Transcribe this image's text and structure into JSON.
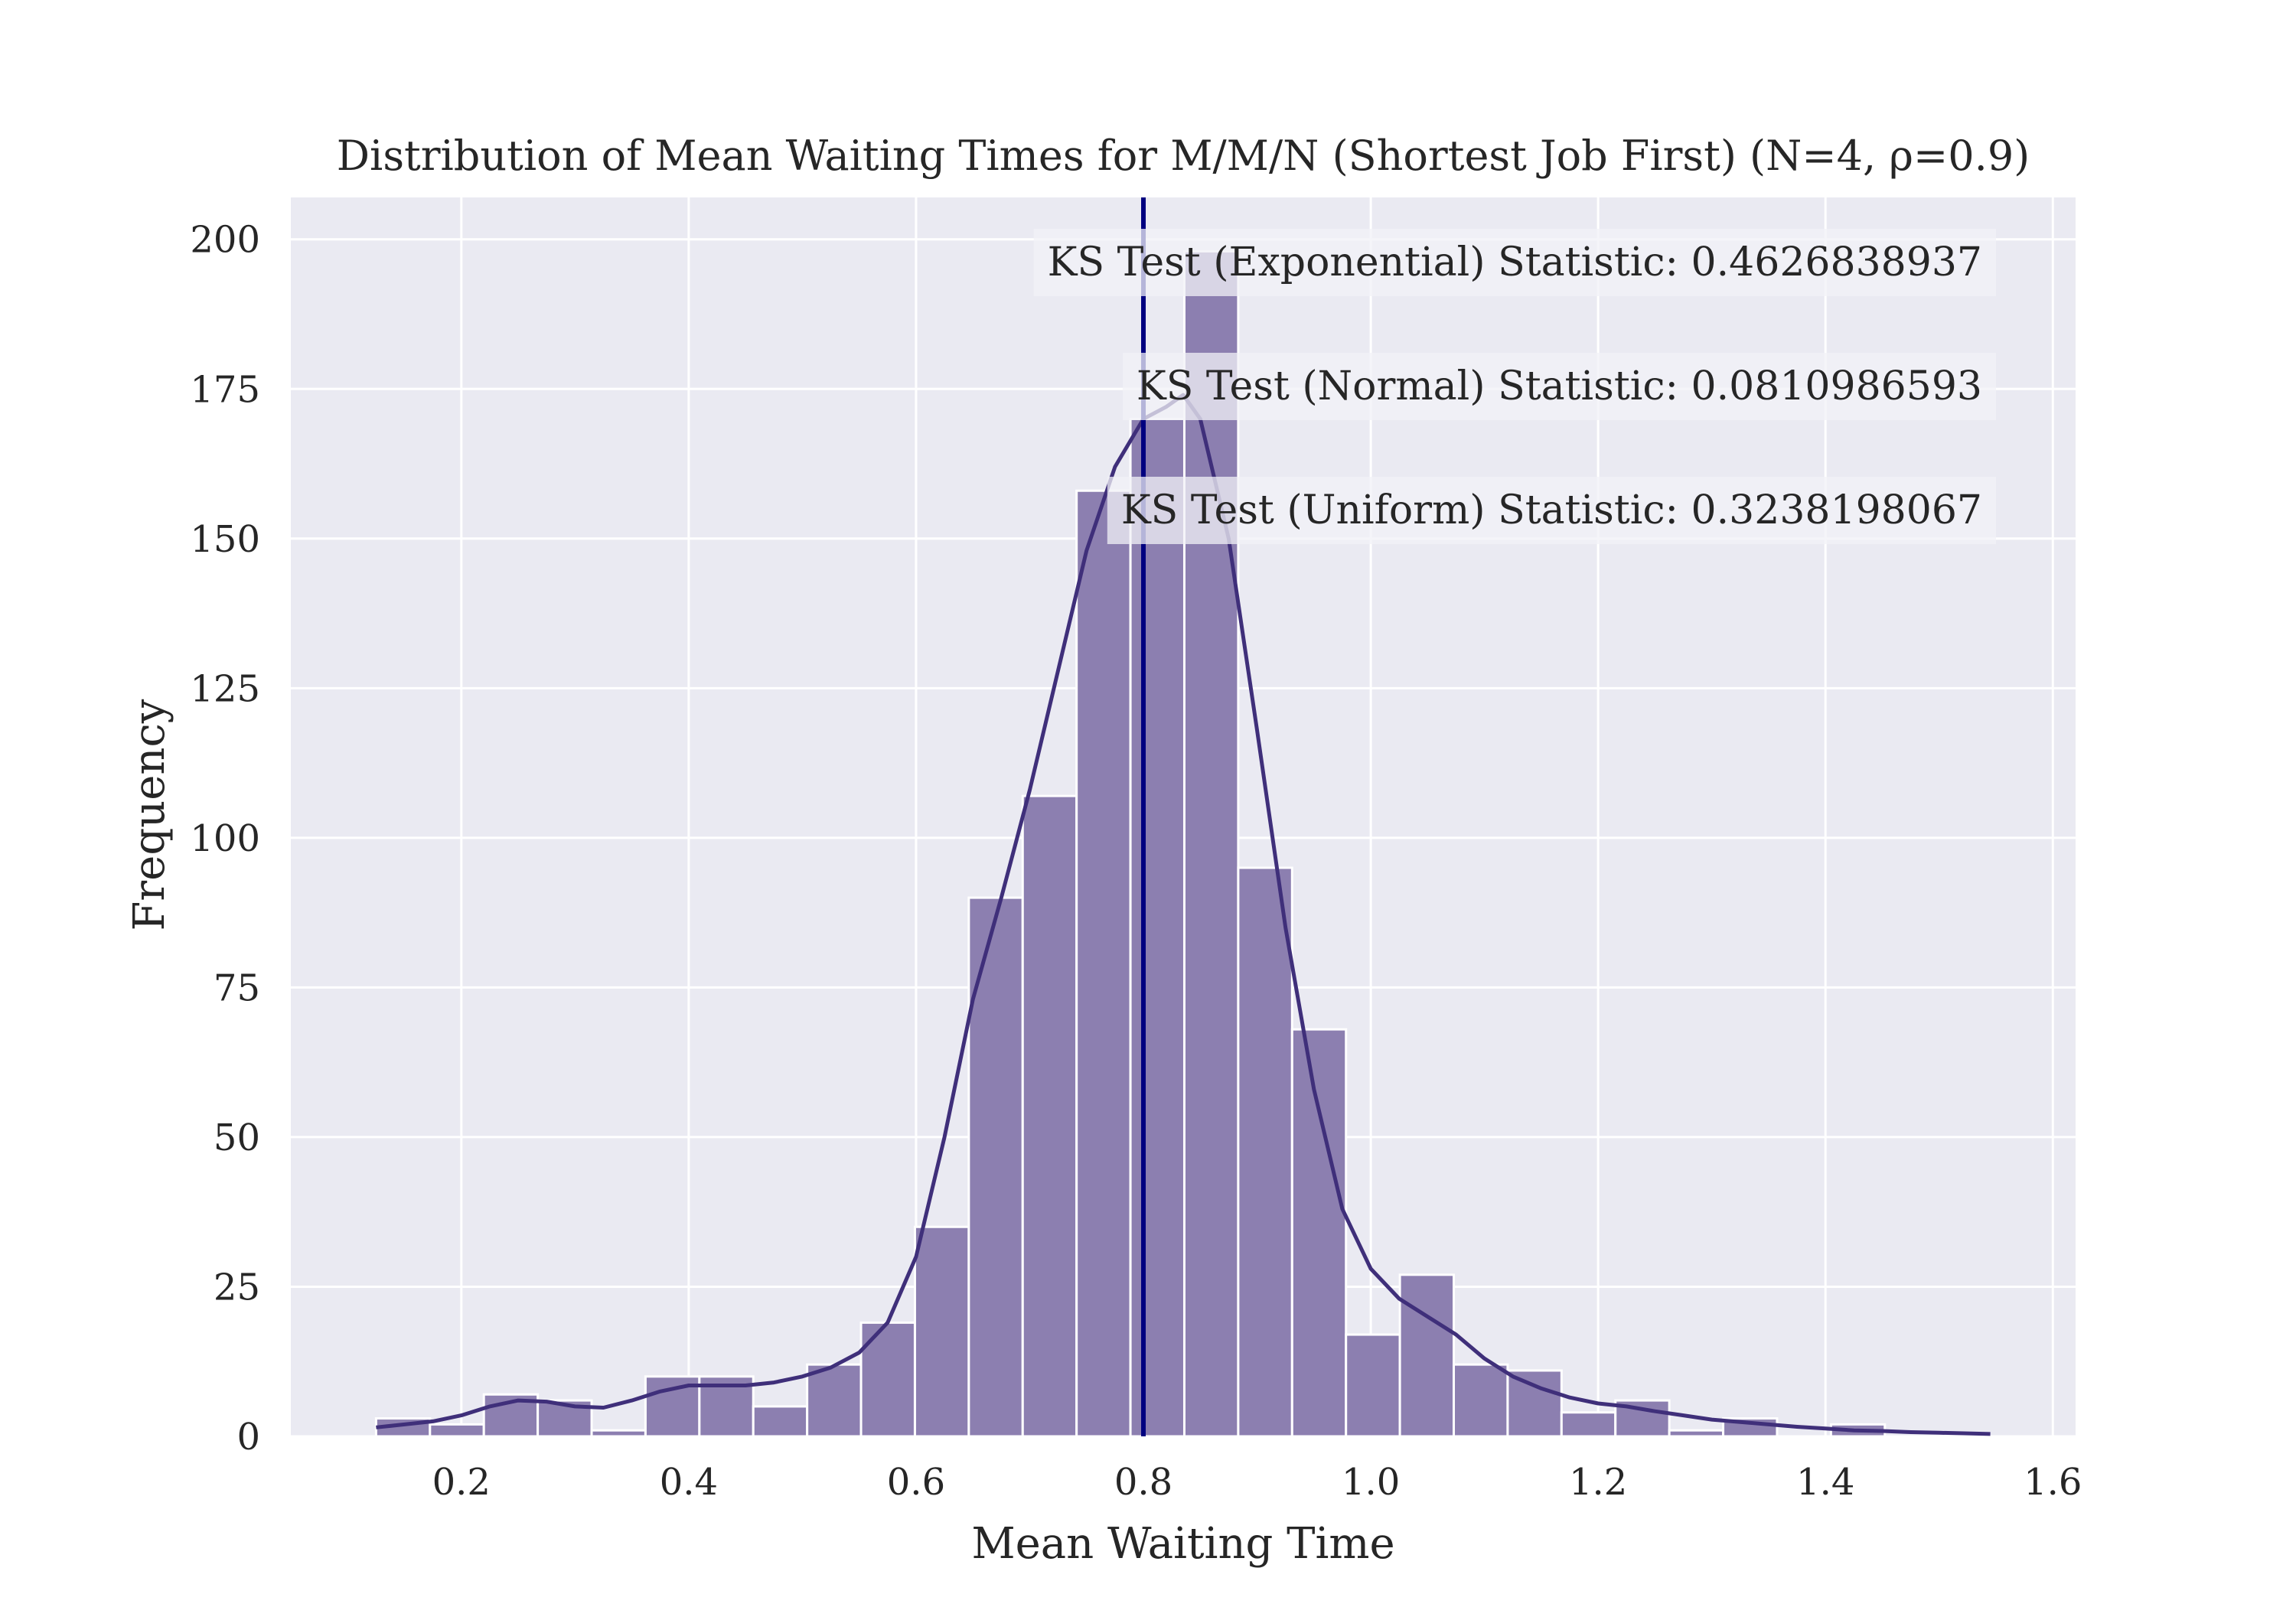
{
  "chart_data": {
    "type": "bar",
    "title": "Distribution of Mean Waiting Times for M/M/N (Shortest Job First) (N=4, ρ=0.9)",
    "xlabel": "Mean Waiting Time",
    "ylabel": "Frequency",
    "xlim": [
      0.05,
      1.62
    ],
    "ylim": [
      0,
      207
    ],
    "xticks": [
      0.2,
      0.4,
      0.6,
      0.8,
      1.0,
      1.2,
      1.4,
      1.6
    ],
    "xtick_labels": [
      "0.2",
      "0.4",
      "0.6",
      "0.8",
      "1.0",
      "1.2",
      "1.4",
      "1.6"
    ],
    "yticks": [
      0,
      25,
      50,
      75,
      100,
      125,
      150,
      175,
      200
    ],
    "ytick_labels": [
      "0",
      "25",
      "50",
      "75",
      "100",
      "125",
      "150",
      "175",
      "200"
    ],
    "grid": true,
    "bins": {
      "start": 0.125,
      "width": 0.0474,
      "counts": [
        3,
        2,
        7,
        6,
        1,
        10,
        10,
        5,
        12,
        19,
        35,
        90,
        107,
        158,
        170,
        198,
        95,
        68,
        17,
        27,
        12,
        11,
        4,
        6,
        1,
        3,
        0,
        2,
        0,
        0
      ]
    },
    "kde": {
      "x": [
        0.125,
        0.15,
        0.175,
        0.2,
        0.225,
        0.25,
        0.275,
        0.3,
        0.325,
        0.35,
        0.375,
        0.4,
        0.425,
        0.45,
        0.475,
        0.5,
        0.525,
        0.55,
        0.575,
        0.6,
        0.625,
        0.65,
        0.675,
        0.7,
        0.725,
        0.75,
        0.775,
        0.8,
        0.82,
        0.835,
        0.85,
        0.875,
        0.9,
        0.925,
        0.95,
        0.975,
        1.0,
        1.025,
        1.05,
        1.075,
        1.1,
        1.125,
        1.15,
        1.175,
        1.2,
        1.225,
        1.25,
        1.275,
        1.3,
        1.325,
        1.35,
        1.375,
        1.4,
        1.425,
        1.45,
        1.475,
        1.5,
        1.525,
        1.545
      ],
      "y": [
        1.5,
        2,
        2.5,
        3.5,
        5,
        6,
        5.8,
        5,
        4.8,
        6,
        7.5,
        8.5,
        8.5,
        8.5,
        9,
        10,
        11.5,
        14,
        19,
        30,
        50,
        73,
        90,
        108,
        128,
        148,
        162,
        170,
        172,
        174,
        170,
        150,
        118,
        85,
        58,
        38,
        28,
        23,
        20,
        17,
        13,
        10,
        8,
        6.5,
        5.5,
        5,
        4.2,
        3.5,
        2.8,
        2.4,
        2,
        1.6,
        1.3,
        1,
        0.9,
        0.7,
        0.6,
        0.5,
        0.4
      ]
    },
    "vline": {
      "x": 0.8,
      "color": "#000080"
    },
    "annotations": [
      "KS Test (Exponential) Statistic: 0.4626838937",
      "KS Test (Normal) Statistic: 0.0810986593",
      "KS Test (Uniform) Statistic: 0.3238198067"
    ],
    "colors": {
      "plot_background": "#eaeaf2",
      "grid": "#ffffff",
      "bar_fill": "#8c7fb0",
      "kde_line": "#3f2f7a",
      "annotation_box": "#f2f2f7"
    }
  }
}
